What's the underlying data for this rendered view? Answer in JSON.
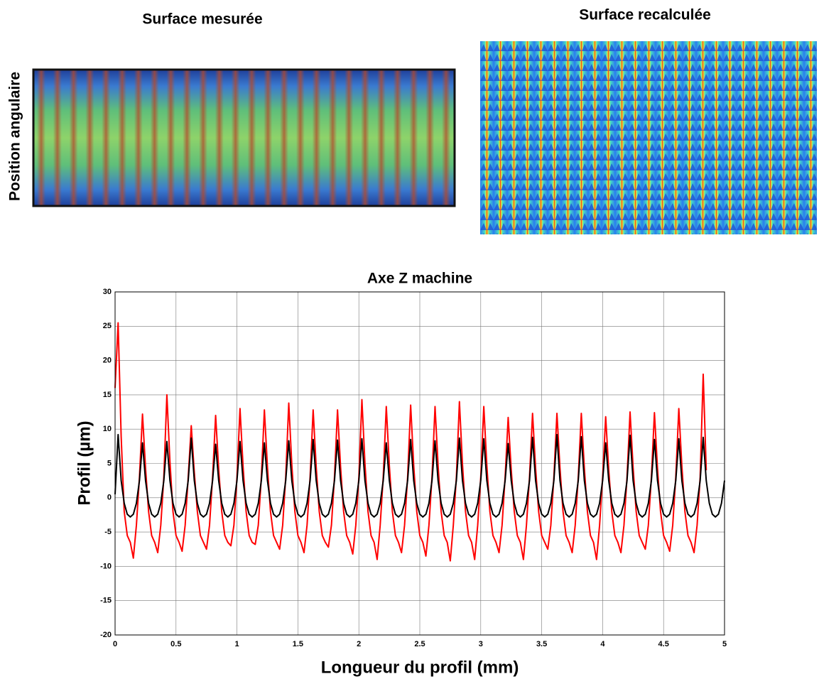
{
  "figure": {
    "left_title": "Surface mesurée",
    "right_title": "Surface recalculée",
    "left_ylabel": "Position angulaire"
  },
  "chart_data": {
    "type": "line",
    "title": "Axe Z machine",
    "x_label": "Longueur du profil (mm)",
    "y_label": "Profil (µm)",
    "xlim": [
      0,
      5
    ],
    "ylim": [
      -20,
      30
    ],
    "xticks": [
      0,
      0.5,
      1,
      1.5,
      2,
      2.5,
      3,
      3.5,
      4,
      4.5,
      5
    ],
    "yticks": [
      -20,
      -15,
      -10,
      -5,
      0,
      5,
      10,
      15,
      20,
      25,
      30
    ],
    "grid": true,
    "x": [
      0,
      0.025,
      0.05,
      0.075,
      0.1,
      0.125,
      0.15,
      0.175,
      0.2,
      0.225,
      0.25,
      0.275,
      0.3,
      0.325,
      0.35,
      0.375,
      0.4,
      0.425,
      0.45,
      0.475,
      0.5,
      0.525,
      0.55,
      0.575,
      0.6,
      0.625,
      0.65,
      0.675,
      0.7,
      0.725,
      0.75,
      0.775,
      0.8,
      0.825,
      0.85,
      0.875,
      0.9,
      0.925,
      0.95,
      0.975,
      1,
      1.025,
      1.05,
      1.075,
      1.1,
      1.125,
      1.15,
      1.175,
      1.2,
      1.225,
      1.25,
      1.275,
      1.3,
      1.325,
      1.35,
      1.375,
      1.4,
      1.425,
      1.45,
      1.475,
      1.5,
      1.525,
      1.55,
      1.575,
      1.6,
      1.625,
      1.65,
      1.675,
      1.7,
      1.725,
      1.75,
      1.775,
      1.8,
      1.825,
      1.85,
      1.875,
      1.9,
      1.925,
      1.95,
      1.975,
      2,
      2.025,
      2.05,
      2.075,
      2.1,
      2.125,
      2.15,
      2.175,
      2.2,
      2.225,
      2.25,
      2.275,
      2.3,
      2.325,
      2.35,
      2.375,
      2.4,
      2.425,
      2.45,
      2.475,
      2.5,
      2.525,
      2.55,
      2.575,
      2.6,
      2.625,
      2.65,
      2.675,
      2.7,
      2.725,
      2.75,
      2.775,
      2.8,
      2.825,
      2.85,
      2.875,
      2.9,
      2.925,
      2.95,
      2.975,
      3,
      3.025,
      3.05,
      3.075,
      3.1,
      3.125,
      3.15,
      3.175,
      3.2,
      3.225,
      3.25,
      3.275,
      3.3,
      3.325,
      3.35,
      3.375,
      3.4,
      3.425,
      3.45,
      3.475,
      3.5,
      3.525,
      3.55,
      3.575,
      3.6,
      3.625,
      3.65,
      3.675,
      3.7,
      3.725,
      3.75,
      3.775,
      3.8,
      3.825,
      3.85,
      3.875,
      3.9,
      3.925,
      3.95,
      3.975,
      4,
      4.025,
      4.05,
      4.075,
      4.1,
      4.125,
      4.15,
      4.175,
      4.2,
      4.225,
      4.25,
      4.275,
      4.3,
      4.325,
      4.35,
      4.375,
      4.4,
      4.425,
      4.45,
      4.475,
      4.5,
      4.525,
      4.55,
      4.575,
      4.6,
      4.625,
      4.65,
      4.675,
      4.7,
      4.725,
      4.75,
      4.775,
      4.8,
      4.825,
      4.85,
      4.875,
      4.9,
      4.925,
      4.95,
      4.975,
      5
    ],
    "series": [
      {
        "color": "#ff0000",
        "values": [
          16,
          25.5,
          8.9,
          -2,
          -5.5,
          -6.5,
          -8.8,
          -4,
          3,
          12.2,
          4.3,
          -2,
          -5.5,
          -6.5,
          -8,
          -4,
          3,
          15,
          5.3,
          -2,
          -5.5,
          -6.5,
          -7.8,
          -4,
          3,
          10.5,
          3.7,
          -2,
          -5.5,
          -6.5,
          -7.5,
          -4,
          3,
          12,
          4.2,
          -2,
          -5.5,
          -6.5,
          -7,
          -4,
          3,
          13,
          4.6,
          -2,
          -5.5,
          -6.5,
          -6.8,
          -4,
          3,
          12.8,
          4.5,
          -2,
          -5.5,
          -6.5,
          -7.5,
          -4,
          3,
          13.8,
          4.8,
          -2,
          -5.5,
          -6.5,
          -8,
          -4,
          3,
          12.8,
          4.5,
          -2,
          -5.5,
          -6.5,
          -7.2,
          -4,
          3,
          12.8,
          4.5,
          -2,
          -5.5,
          -6.5,
          -8.2,
          -4,
          3,
          14.3,
          5,
          -2,
          -5.5,
          -6.5,
          -9,
          -4,
          3,
          13.3,
          4.7,
          -2,
          -5.5,
          -6.5,
          -8,
          -4,
          3,
          13.5,
          4.7,
          -2,
          -5.5,
          -6.5,
          -8.5,
          -4,
          3,
          13.3,
          4.7,
          -2,
          -5.5,
          -6.5,
          -9.2,
          -4,
          3,
          14,
          4.9,
          -2,
          -5.5,
          -6.5,
          -9,
          -4,
          3,
          13.3,
          4.7,
          -2,
          -5.5,
          -6.5,
          -8,
          -4,
          3,
          11.7,
          4.1,
          -2,
          -5.5,
          -6.5,
          -9,
          -4,
          3,
          12.3,
          4.3,
          -2,
          -5.5,
          -6.5,
          -7.5,
          -4,
          3,
          12.3,
          4.3,
          -2,
          -5.5,
          -6.5,
          -8,
          -4,
          3,
          12.3,
          4.3,
          -2,
          -5.5,
          -6.5,
          -9,
          -4,
          3,
          11.8,
          4.1,
          -2,
          -5.5,
          -6.5,
          -8,
          -4,
          3,
          12.5,
          4.4,
          -2,
          -5.5,
          -6.5,
          -7.5,
          -4,
          3,
          12.4,
          4.3,
          -2,
          -5.5,
          -6.5,
          -7.8,
          -4,
          3,
          13,
          4.6,
          -2,
          -5.5,
          -6.5,
          -8,
          -4,
          3,
          18,
          4,
          null,
          null,
          null,
          null,
          null,
          null
        ]
      },
      {
        "color": "#000000",
        "values": [
          0.5,
          9.2,
          2.5,
          -0.8,
          -2.4,
          -2.8,
          -2.4,
          -0.8,
          2.5,
          8,
          2.5,
          -0.8,
          -2.4,
          -2.8,
          -2.4,
          -0.8,
          2.5,
          8.2,
          2.5,
          -0.8,
          -2.4,
          -2.8,
          -2.4,
          -0.8,
          2.5,
          8.7,
          2.5,
          -0.8,
          -2.4,
          -2.8,
          -2.4,
          -0.8,
          2.5,
          7.8,
          2.5,
          -0.8,
          -2.4,
          -2.8,
          -2.4,
          -0.8,
          2.5,
          8.2,
          2.5,
          -0.8,
          -2.4,
          -2.8,
          -2.4,
          -0.8,
          2.5,
          8,
          2.5,
          -0.8,
          -2.4,
          -2.8,
          -2.4,
          -0.8,
          2.5,
          8.3,
          2.5,
          -0.8,
          -2.4,
          -2.8,
          -2.4,
          -0.8,
          2.5,
          8.5,
          2.5,
          -0.8,
          -2.4,
          -2.8,
          -2.4,
          -0.8,
          2.5,
          8.4,
          2.5,
          -0.8,
          -2.4,
          -2.8,
          -2.4,
          -0.8,
          2.5,
          8.6,
          2.5,
          -0.8,
          -2.4,
          -2.8,
          -2.4,
          -0.8,
          2.5,
          8,
          2.5,
          -0.8,
          -2.4,
          -2.8,
          -2.4,
          -0.8,
          2.5,
          8.5,
          2.5,
          -0.8,
          -2.4,
          -2.8,
          -2.4,
          -0.8,
          2.5,
          8.3,
          2.5,
          -0.8,
          -2.4,
          -2.8,
          -2.4,
          -0.8,
          2.5,
          8.7,
          2.5,
          -0.8,
          -2.4,
          -2.8,
          -2.4,
          -0.8,
          2.5,
          8.6,
          2.5,
          -0.8,
          -2.4,
          -2.8,
          -2.4,
          -0.8,
          2.5,
          7.9,
          2.5,
          -0.8,
          -2.4,
          -2.8,
          -2.4,
          -0.8,
          2.5,
          8.8,
          2.5,
          -0.8,
          -2.4,
          -2.8,
          -2.4,
          -0.8,
          2.5,
          9.2,
          2.5,
          -0.8,
          -2.4,
          -2.8,
          -2.4,
          -0.8,
          2.5,
          8.9,
          2.5,
          -0.8,
          -2.4,
          -2.8,
          -2.4,
          -0.8,
          2.5,
          8,
          2.5,
          -0.8,
          -2.4,
          -2.8,
          -2.4,
          -0.8,
          2.5,
          9.1,
          2.5,
          -0.8,
          -2.4,
          -2.8,
          -2.4,
          -0.8,
          2.5,
          8.5,
          2.5,
          -0.8,
          -2.4,
          -2.8,
          -2.4,
          -0.8,
          2.5,
          8.6,
          2.5,
          -0.8,
          -2.4,
          -2.8,
          -2.4,
          -0.8,
          2.5,
          8.8,
          2.5,
          -0.8,
          -2.4,
          -2.8,
          -2.4,
          -0.8,
          2.5
        ]
      }
    ]
  }
}
